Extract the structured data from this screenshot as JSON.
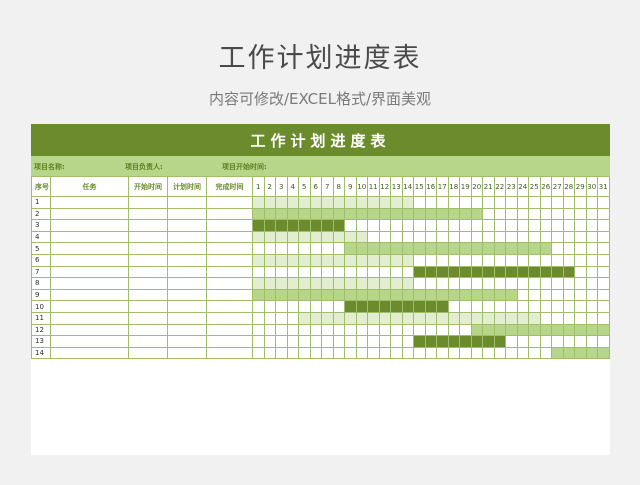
{
  "page": {
    "title": "工作计划进度表",
    "subtitle": "内容可修改/EXCEL格式/界面美观"
  },
  "sheet": {
    "title": "工作计划进度表",
    "info": {
      "project_name_label": "项目名称:",
      "project_owner_label": "项目负责人:",
      "project_start_label": "项目开始时间:"
    },
    "columns": [
      "序号",
      "任务",
      "开始时间",
      "计划时间",
      "完成时间"
    ],
    "days": [
      "1",
      "2",
      "3",
      "4",
      "5",
      "6",
      "7",
      "8",
      "9",
      "10",
      "11",
      "12",
      "13",
      "14",
      "15",
      "16",
      "17",
      "18",
      "19",
      "20",
      "21",
      "22",
      "23",
      "24",
      "25",
      "26",
      "27",
      "28",
      "29",
      "30",
      "31"
    ],
    "rows": [
      {
        "no": "1",
        "bar": {
          "start": 1,
          "end": 14,
          "level": 1
        }
      },
      {
        "no": "2",
        "bar": {
          "start": 1,
          "end": 20,
          "level": 2
        }
      },
      {
        "no": "3",
        "bar": {
          "start": 1,
          "end": 8,
          "level": 3
        }
      },
      {
        "no": "4",
        "bar": {
          "start": 1,
          "end": 10,
          "level": 1
        }
      },
      {
        "no": "5",
        "bar": {
          "start": 9,
          "end": 26,
          "level": 2
        }
      },
      {
        "no": "6",
        "bar": {
          "start": 1,
          "end": 14,
          "level": 1
        }
      },
      {
        "no": "7",
        "bar": {
          "start": 15,
          "end": 28,
          "level": 3
        }
      },
      {
        "no": "8",
        "bar": {
          "start": 1,
          "end": 14,
          "level": 1
        }
      },
      {
        "no": "9",
        "bar": {
          "start": 1,
          "end": 23,
          "level": 2
        }
      },
      {
        "no": "10",
        "bar": {
          "start": 9,
          "end": 17,
          "level": 3
        }
      },
      {
        "no": "11",
        "bar": {
          "start": 5,
          "end": 25,
          "level": 1
        }
      },
      {
        "no": "12",
        "bar": {
          "start": 20,
          "end": 31,
          "level": 2
        }
      },
      {
        "no": "13",
        "bar": {
          "start": 15,
          "end": 22,
          "level": 3
        }
      },
      {
        "no": "14",
        "bar": {
          "start": 27,
          "end": 31,
          "level": 2
        }
      }
    ]
  },
  "colors": {
    "banner": "#6b8b2c",
    "info_row": "#b7d68a",
    "bar_light": "#e3eed0",
    "bar_medium": "#b7d68a",
    "bar_dark": "#6b8b2c",
    "grid": "#9fbd6a"
  }
}
